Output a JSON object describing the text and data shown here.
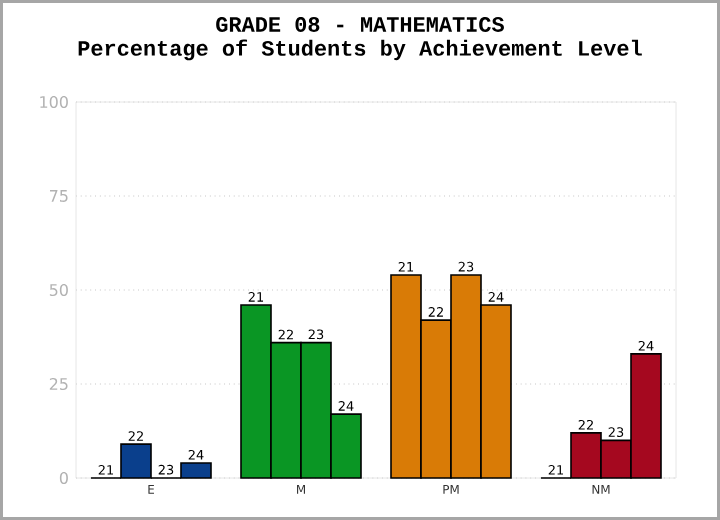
{
  "chart_data": {
    "type": "bar",
    "title": "GRADE 08 - MATHEMATICS",
    "subtitle": "Percentage of Students by Achievement Level",
    "categories": [
      "E",
      "M",
      "PM",
      "NM"
    ],
    "series": [
      {
        "name": "21",
        "colors": [
          "#0a3f8c",
          "#0a9624",
          "#d97b06",
          "#a5081f"
        ],
        "values": [
          0,
          46,
          54,
          0
        ]
      },
      {
        "name": "22",
        "colors": [
          "#0a3f8c",
          "#0a9624",
          "#d97b06",
          "#a5081f"
        ],
        "values": [
          9,
          36,
          42,
          12
        ]
      },
      {
        "name": "23",
        "colors": [
          "#0a3f8c",
          "#0a9624",
          "#d97b06",
          "#a5081f"
        ],
        "values": [
          0,
          36,
          54,
          10
        ]
      },
      {
        "name": "24",
        "colors": [
          "#0a3f8c",
          "#0a9624",
          "#d97b06",
          "#a5081f"
        ],
        "values": [
          4,
          17,
          46,
          33
        ]
      }
    ],
    "ylim": [
      0,
      100
    ],
    "yticks": [
      0,
      25,
      50,
      75,
      100
    ],
    "grid": "y"
  }
}
